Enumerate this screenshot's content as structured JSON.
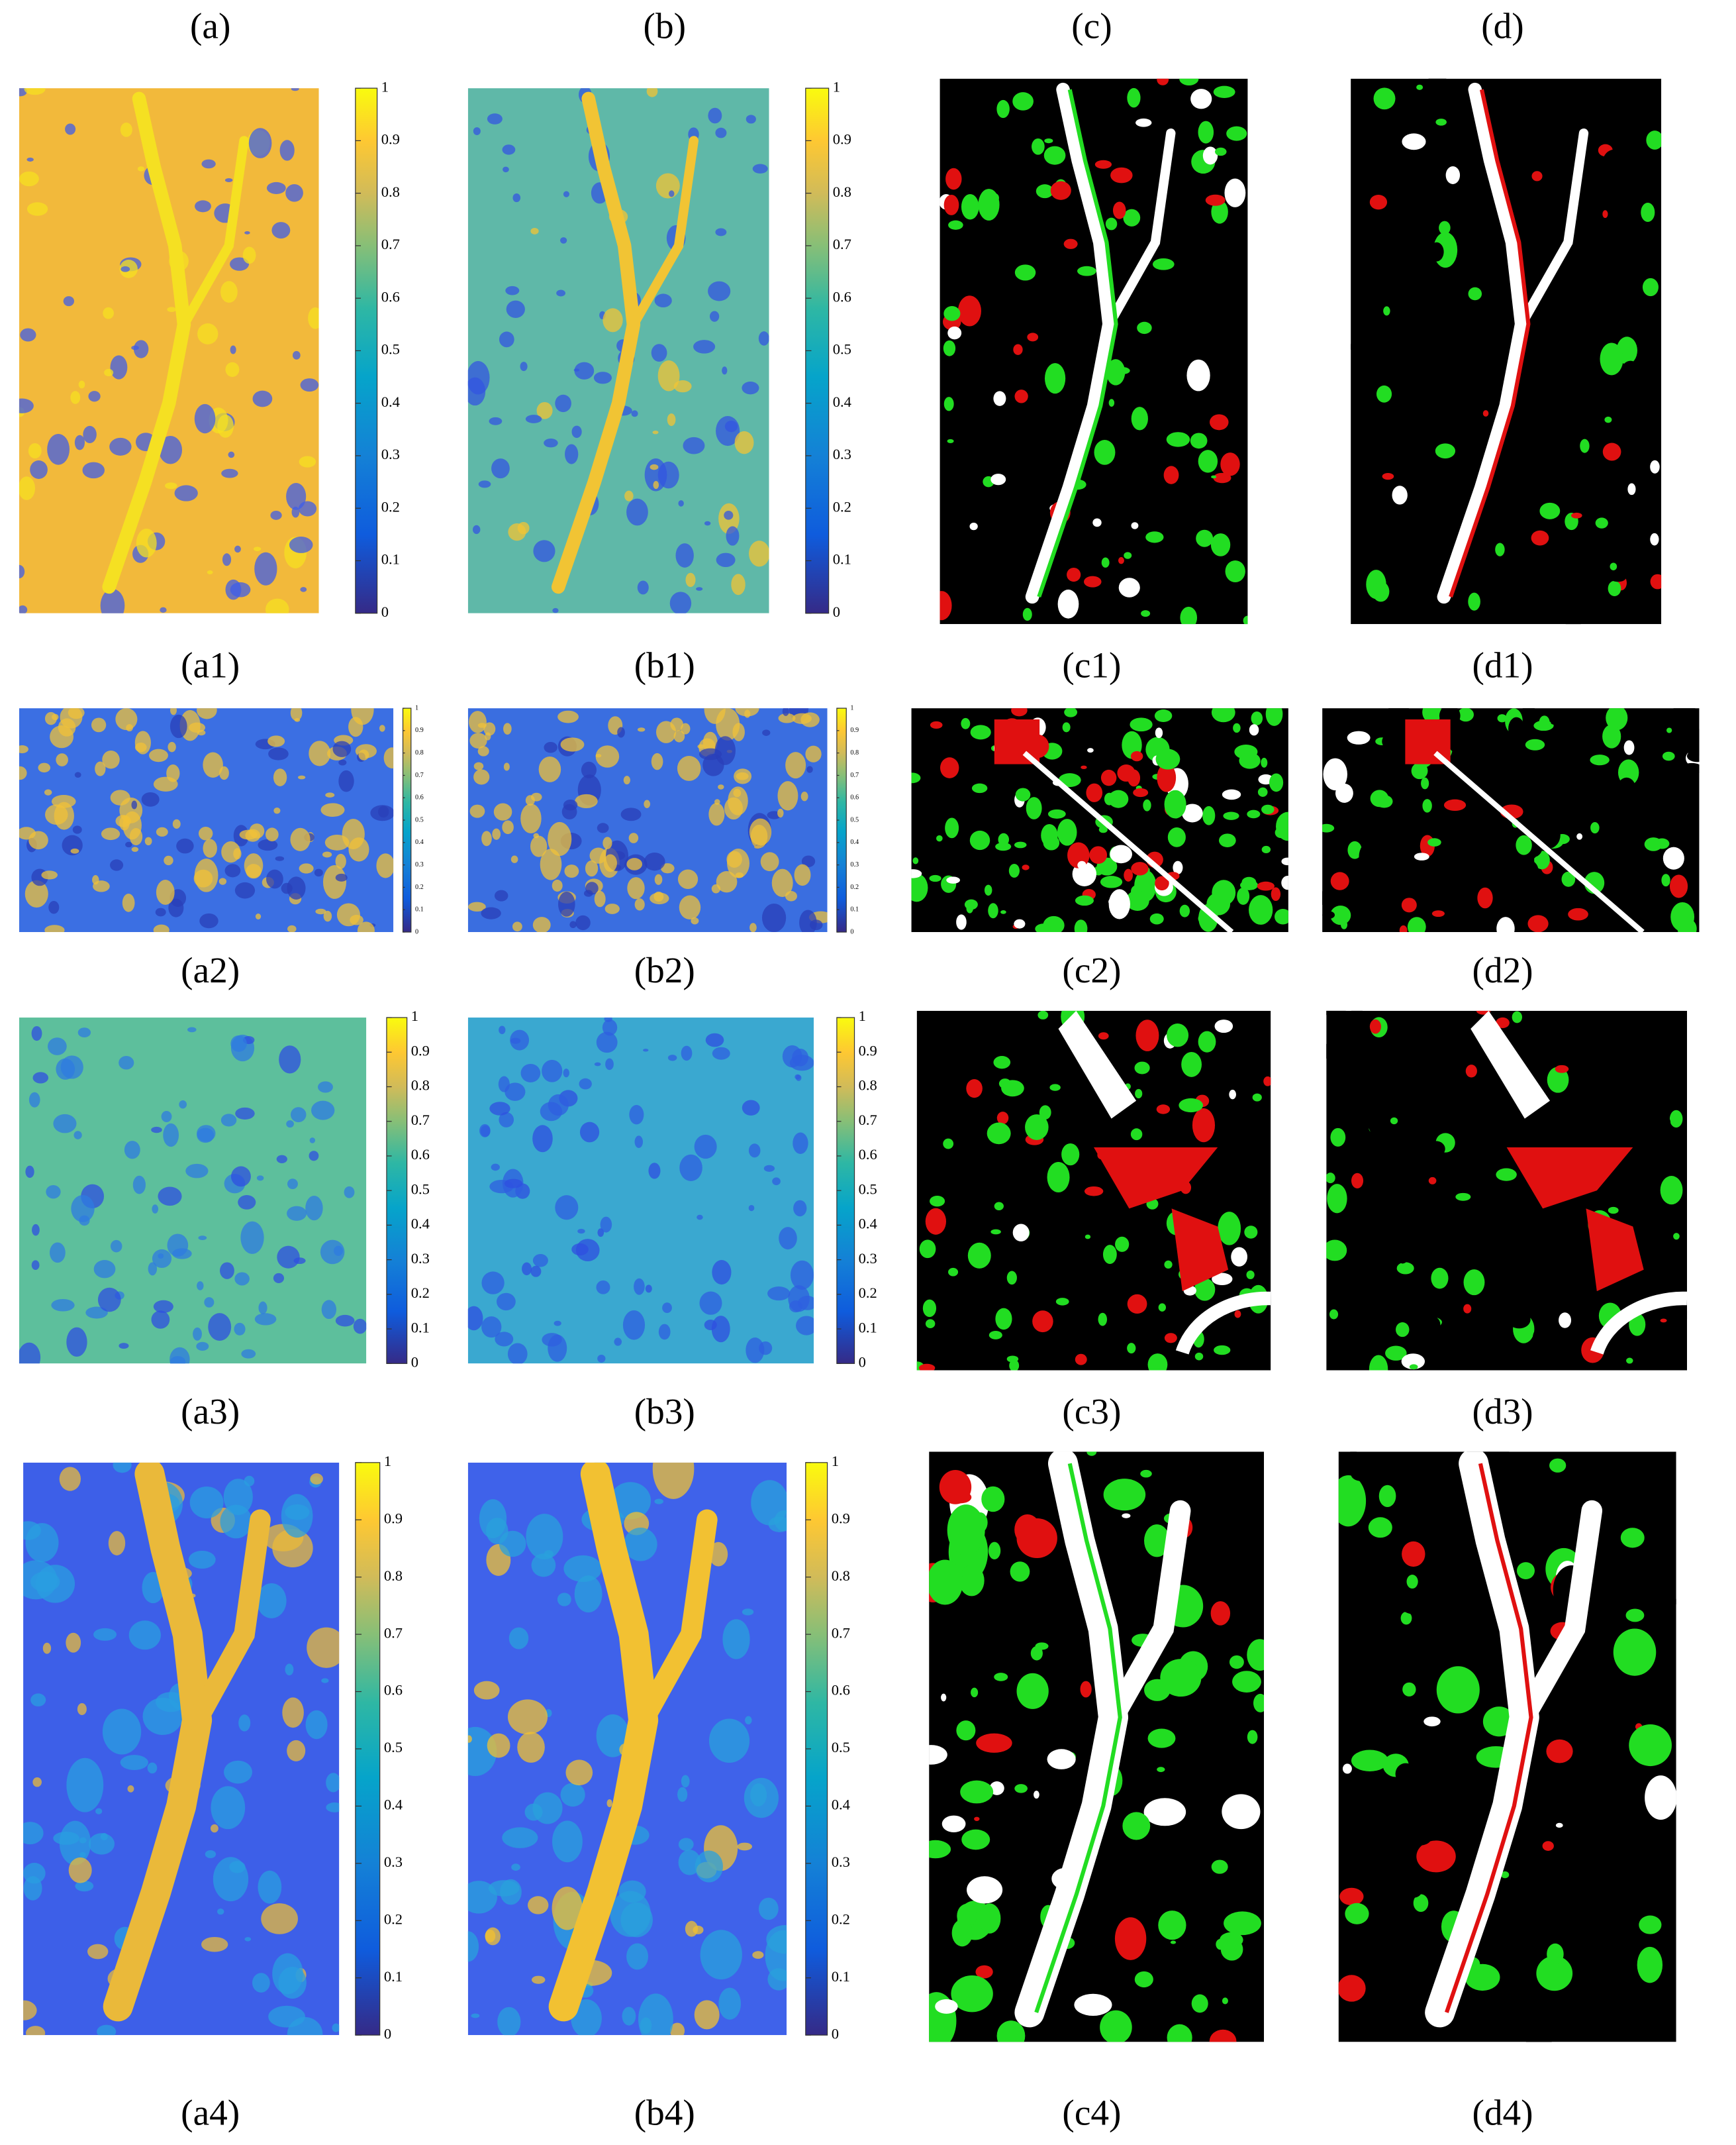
{
  "header_labels": [
    "(a)",
    "(b)",
    "(c)",
    "(d)"
  ],
  "rows": [
    {
      "labels": [
        "(a1)",
        "(b1)",
        "(c1)",
        "(d1)"
      ]
    },
    {
      "labels": [
        "(a2)",
        "(b2)",
        "(c2)",
        "(d2)"
      ]
    },
    {
      "labels": [
        "(a3)",
        "(b3)",
        "(c3)",
        "(d3)"
      ]
    },
    {
      "labels": [
        "(a4)",
        "(b4)",
        "(c4)",
        "(d4)"
      ]
    }
  ],
  "colorbar": {
    "ticks": [
      0,
      0.1,
      0.2,
      0.3,
      0.4,
      0.5,
      0.6,
      0.7,
      0.8,
      0.9,
      1
    ]
  }
}
